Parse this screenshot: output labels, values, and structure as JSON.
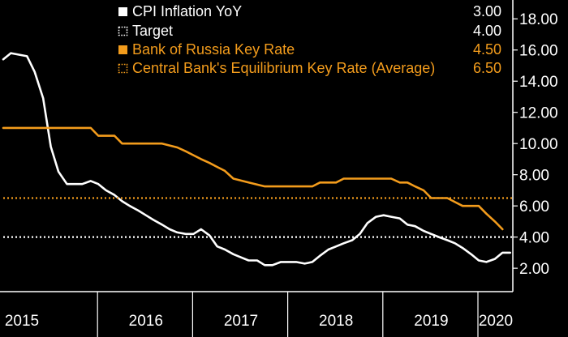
{
  "chart_data": {
    "type": "line",
    "title": "",
    "xlabel": "",
    "ylabel": "",
    "x_start": 2015.0,
    "x_end": 2020.45,
    "ylim": [
      0.5,
      19
    ],
    "y_ticks": [
      "18.00",
      "16.00",
      "14.00",
      "12.00",
      "10.00",
      "8.00",
      "6.00",
      "4.00",
      "2.00"
    ],
    "y_tick_values": [
      18,
      16,
      14,
      12,
      10,
      8,
      6,
      4,
      2
    ],
    "x_year_labels": [
      "2015",
      "2016",
      "2017",
      "2018",
      "2019",
      "2020"
    ],
    "x_year_values": [
      2015.0,
      2016.0,
      2017.0,
      2018.0,
      2019.0,
      2020.0
    ],
    "grid": false,
    "legend_position": "top-left",
    "series": [
      {
        "name": "CPI Inflation YoY",
        "legend_value": "3.00",
        "color": "#ffffff",
        "style": "solid",
        "marker": "white-square",
        "points": [
          [
            2015.0,
            15.4
          ],
          [
            2015.08,
            15.8
          ],
          [
            2015.25,
            15.6
          ],
          [
            2015.33,
            14.6
          ],
          [
            2015.42,
            12.9
          ],
          [
            2015.5,
            9.8
          ],
          [
            2015.58,
            8.2
          ],
          [
            2015.67,
            7.4
          ],
          [
            2015.83,
            7.4
          ],
          [
            2015.92,
            7.6
          ],
          [
            2016.0,
            7.4
          ],
          [
            2016.08,
            7.0
          ],
          [
            2016.17,
            6.7
          ],
          [
            2016.25,
            6.3
          ],
          [
            2016.33,
            6.0
          ],
          [
            2016.42,
            5.7
          ],
          [
            2016.5,
            5.4
          ],
          [
            2016.58,
            5.1
          ],
          [
            2016.67,
            4.8
          ],
          [
            2016.75,
            4.5
          ],
          [
            2016.83,
            4.3
          ],
          [
            2016.92,
            4.2
          ],
          [
            2017.0,
            4.2
          ],
          [
            2017.08,
            4.5
          ],
          [
            2017.17,
            4.1
          ],
          [
            2017.25,
            3.4
          ],
          [
            2017.33,
            3.2
          ],
          [
            2017.42,
            2.9
          ],
          [
            2017.5,
            2.7
          ],
          [
            2017.58,
            2.5
          ],
          [
            2017.67,
            2.5
          ],
          [
            2017.75,
            2.2
          ],
          [
            2017.83,
            2.2
          ],
          [
            2017.92,
            2.4
          ],
          [
            2018.0,
            2.4
          ],
          [
            2018.08,
            2.4
          ],
          [
            2018.17,
            2.3
          ],
          [
            2018.25,
            2.4
          ],
          [
            2018.33,
            2.8
          ],
          [
            2018.42,
            3.2
          ],
          [
            2018.5,
            3.4
          ],
          [
            2018.58,
            3.6
          ],
          [
            2018.67,
            3.8
          ],
          [
            2018.75,
            4.2
          ],
          [
            2018.83,
            4.9
          ],
          [
            2018.92,
            5.3
          ],
          [
            2019.0,
            5.4
          ],
          [
            2019.08,
            5.3
          ],
          [
            2019.17,
            5.2
          ],
          [
            2019.25,
            4.8
          ],
          [
            2019.33,
            4.7
          ],
          [
            2019.42,
            4.4
          ],
          [
            2019.5,
            4.2
          ],
          [
            2019.58,
            4.0
          ],
          [
            2019.67,
            3.8
          ],
          [
            2019.75,
            3.6
          ],
          [
            2019.83,
            3.3
          ],
          [
            2019.92,
            2.9
          ],
          [
            2020.0,
            2.5
          ],
          [
            2020.08,
            2.4
          ],
          [
            2020.17,
            2.6
          ],
          [
            2020.25,
            3.0
          ],
          [
            2020.33,
            3.0
          ]
        ]
      },
      {
        "name": "Target",
        "legend_value": "4.00",
        "color": "#ffffff",
        "style": "dotted",
        "marker": "dotted-square",
        "points": [
          [
            2015.0,
            4.0
          ],
          [
            2020.45,
            4.0
          ]
        ]
      },
      {
        "name": "Bank of Russia Key Rate",
        "legend_value": "4.50",
        "color": "#f39c1c",
        "style": "solid",
        "marker": "orange-square",
        "points": [
          [
            2015.0,
            11.0
          ],
          [
            2015.92,
            11.0
          ],
          [
            2016.0,
            10.5
          ],
          [
            2016.17,
            10.5
          ],
          [
            2016.25,
            10.0
          ],
          [
            2016.58,
            10.0
          ],
          [
            2016.67,
            10.0
          ],
          [
            2016.83,
            9.75
          ],
          [
            2016.92,
            9.5
          ],
          [
            2017.0,
            9.25
          ],
          [
            2017.08,
            9.0
          ],
          [
            2017.17,
            8.75
          ],
          [
            2017.25,
            8.5
          ],
          [
            2017.33,
            8.25
          ],
          [
            2017.42,
            7.75
          ],
          [
            2017.58,
            7.5
          ],
          [
            2017.75,
            7.25
          ],
          [
            2018.0,
            7.25
          ],
          [
            2018.17,
            7.25
          ],
          [
            2018.25,
            7.25
          ],
          [
            2018.33,
            7.5
          ],
          [
            2018.5,
            7.5
          ],
          [
            2018.58,
            7.75
          ],
          [
            2018.67,
            7.75
          ],
          [
            2018.83,
            7.75
          ],
          [
            2018.92,
            7.75
          ],
          [
            2019.0,
            7.75
          ],
          [
            2019.08,
            7.75
          ],
          [
            2019.17,
            7.5
          ],
          [
            2019.25,
            7.5
          ],
          [
            2019.33,
            7.25
          ],
          [
            2019.42,
            7.0
          ],
          [
            2019.5,
            6.5
          ],
          [
            2019.67,
            6.5
          ],
          [
            2019.75,
            6.25
          ],
          [
            2019.83,
            6.0
          ],
          [
            2019.92,
            6.0
          ],
          [
            2020.0,
            6.0
          ],
          [
            2020.08,
            5.5
          ],
          [
            2020.17,
            5.0
          ],
          [
            2020.25,
            4.5
          ]
        ]
      },
      {
        "name": "Central Bank's Equilibrium Key Rate (Average)",
        "legend_value": "6.50",
        "color": "#f39c1c",
        "style": "dotted",
        "marker": "dotted-orange-square",
        "points": [
          [
            2015.0,
            6.5
          ],
          [
            2020.45,
            6.5
          ]
        ]
      }
    ]
  }
}
